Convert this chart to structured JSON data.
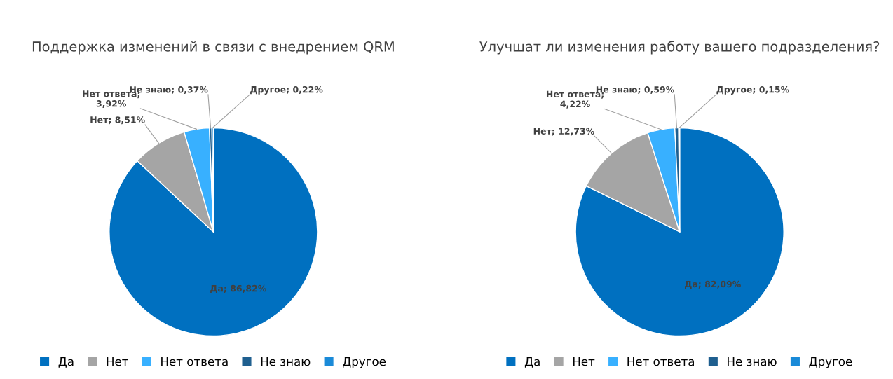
{
  "chart_data": [
    {
      "type": "pie",
      "title": "Поддержка изменений в связи с внедрением QRM",
      "categories": [
        "Да",
        "Нет",
        "Нет ответа",
        "Не знаю",
        "Другое"
      ],
      "values": [
        86.82,
        8.51,
        3.92,
        0.37,
        0.22
      ],
      "colors": [
        "#0070c0",
        "#a5a5a5",
        "#38b0ff",
        "#1f5f8f",
        "#1a8ad8"
      ],
      "value_labels": [
        "Да; 86,82%",
        "Нет; 8,51%",
        "Нет ответа;\n3,92%",
        "Не знаю; 0,37%",
        "Другое; 0,22%"
      ],
      "legend": "bottom"
    },
    {
      "type": "pie",
      "title": "Улучшат ли изменения работу вашего подразделения?",
      "categories": [
        "Да",
        "Нет",
        "Нет ответа",
        "Не знаю",
        "Другое"
      ],
      "values": [
        82.09,
        12.73,
        4.22,
        0.59,
        0.15
      ],
      "colors": [
        "#0070c0",
        "#a5a5a5",
        "#38b0ff",
        "#1f5f8f",
        "#1a8ad8"
      ],
      "value_labels": [
        "Да; 82,09%",
        "Нет; 12,73%",
        "Нет ответа;\n4,22%",
        "Не знаю; 0,59%",
        "Другое; 0,15%"
      ],
      "legend": "bottom"
    }
  ]
}
